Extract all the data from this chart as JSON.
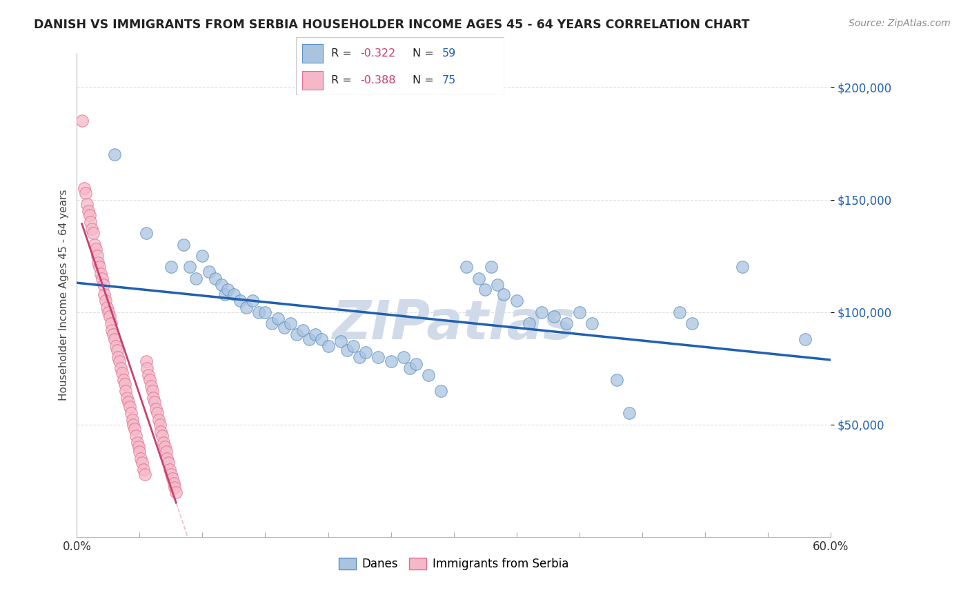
{
  "title": "DANISH VS IMMIGRANTS FROM SERBIA HOUSEHOLDER INCOME AGES 45 - 64 YEARS CORRELATION CHART",
  "source": "Source: ZipAtlas.com",
  "ylabel": "Householder Income Ages 45 - 64 years",
  "ytick_labels": [
    "$50,000",
    "$100,000",
    "$150,000",
    "$200,000"
  ],
  "ytick_values": [
    50000,
    100000,
    150000,
    200000
  ],
  "ylim": [
    0,
    215000
  ],
  "xlim": [
    0.0,
    0.6
  ],
  "legend_label1": "Danes",
  "legend_label2": "Immigrants from Serbia",
  "r1": "-0.322",
  "n1": "59",
  "r2": "-0.388",
  "n2": "75",
  "blue_color": "#aac4df",
  "blue_edge_color": "#5a8fc4",
  "blue_line_color": "#2060b0",
  "pink_color": "#f5b8c8",
  "pink_edge_color": "#e07090",
  "pink_line_color": "#c84070",
  "pink_line_dashed_color": "#e8a0b8",
  "r_color": "#c84070",
  "n_color": "#2060b0",
  "watermark_color": "#d0dae8",
  "background_color": "#ffffff",
  "grid_color": "#e0e0e0",
  "blue_scatter": [
    [
      0.03,
      170000
    ],
    [
      0.055,
      135000
    ],
    [
      0.075,
      120000
    ],
    [
      0.085,
      130000
    ],
    [
      0.09,
      120000
    ],
    [
      0.095,
      115000
    ],
    [
      0.1,
      125000
    ],
    [
      0.105,
      118000
    ],
    [
      0.11,
      115000
    ],
    [
      0.115,
      112000
    ],
    [
      0.118,
      108000
    ],
    [
      0.12,
      110000
    ],
    [
      0.125,
      108000
    ],
    [
      0.13,
      105000
    ],
    [
      0.135,
      102000
    ],
    [
      0.14,
      105000
    ],
    [
      0.145,
      100000
    ],
    [
      0.15,
      100000
    ],
    [
      0.155,
      95000
    ],
    [
      0.16,
      97000
    ],
    [
      0.165,
      93000
    ],
    [
      0.17,
      95000
    ],
    [
      0.175,
      90000
    ],
    [
      0.18,
      92000
    ],
    [
      0.185,
      88000
    ],
    [
      0.19,
      90000
    ],
    [
      0.195,
      88000
    ],
    [
      0.2,
      85000
    ],
    [
      0.21,
      87000
    ],
    [
      0.215,
      83000
    ],
    [
      0.22,
      85000
    ],
    [
      0.225,
      80000
    ],
    [
      0.23,
      82000
    ],
    [
      0.24,
      80000
    ],
    [
      0.25,
      78000
    ],
    [
      0.26,
      80000
    ],
    [
      0.265,
      75000
    ],
    [
      0.27,
      77000
    ],
    [
      0.28,
      72000
    ],
    [
      0.29,
      65000
    ],
    [
      0.31,
      120000
    ],
    [
      0.32,
      115000
    ],
    [
      0.325,
      110000
    ],
    [
      0.33,
      120000
    ],
    [
      0.335,
      112000
    ],
    [
      0.34,
      108000
    ],
    [
      0.35,
      105000
    ],
    [
      0.36,
      95000
    ],
    [
      0.37,
      100000
    ],
    [
      0.38,
      98000
    ],
    [
      0.39,
      95000
    ],
    [
      0.4,
      100000
    ],
    [
      0.41,
      95000
    ],
    [
      0.43,
      70000
    ],
    [
      0.44,
      55000
    ],
    [
      0.48,
      100000
    ],
    [
      0.49,
      95000
    ],
    [
      0.53,
      120000
    ],
    [
      0.58,
      88000
    ]
  ],
  "pink_scatter": [
    [
      0.004,
      185000
    ],
    [
      0.006,
      155000
    ],
    [
      0.007,
      153000
    ],
    [
      0.008,
      148000
    ],
    [
      0.009,
      145000
    ],
    [
      0.01,
      143000
    ],
    [
      0.011,
      140000
    ],
    [
      0.012,
      137000
    ],
    [
      0.013,
      135000
    ],
    [
      0.014,
      130000
    ],
    [
      0.015,
      128000
    ],
    [
      0.016,
      125000
    ],
    [
      0.017,
      122000
    ],
    [
      0.018,
      120000
    ],
    [
      0.019,
      117000
    ],
    [
      0.02,
      115000
    ],
    [
      0.021,
      112000
    ],
    [
      0.022,
      108000
    ],
    [
      0.023,
      105000
    ],
    [
      0.024,
      102000
    ],
    [
      0.025,
      100000
    ],
    [
      0.026,
      98000
    ],
    [
      0.027,
      95000
    ],
    [
      0.028,
      92000
    ],
    [
      0.029,
      90000
    ],
    [
      0.03,
      88000
    ],
    [
      0.031,
      85000
    ],
    [
      0.032,
      83000
    ],
    [
      0.033,
      80000
    ],
    [
      0.034,
      78000
    ],
    [
      0.035,
      75000
    ],
    [
      0.036,
      73000
    ],
    [
      0.037,
      70000
    ],
    [
      0.038,
      68000
    ],
    [
      0.039,
      65000
    ],
    [
      0.04,
      62000
    ],
    [
      0.041,
      60000
    ],
    [
      0.042,
      58000
    ],
    [
      0.043,
      55000
    ],
    [
      0.044,
      52000
    ],
    [
      0.045,
      50000
    ],
    [
      0.046,
      48000
    ],
    [
      0.047,
      45000
    ],
    [
      0.048,
      42000
    ],
    [
      0.049,
      40000
    ],
    [
      0.05,
      38000
    ],
    [
      0.051,
      35000
    ],
    [
      0.052,
      33000
    ],
    [
      0.053,
      30000
    ],
    [
      0.054,
      28000
    ],
    [
      0.055,
      78000
    ],
    [
      0.056,
      75000
    ],
    [
      0.057,
      72000
    ],
    [
      0.058,
      70000
    ],
    [
      0.059,
      67000
    ],
    [
      0.06,
      65000
    ],
    [
      0.061,
      62000
    ],
    [
      0.062,
      60000
    ],
    [
      0.063,
      57000
    ],
    [
      0.064,
      55000
    ],
    [
      0.065,
      52000
    ],
    [
      0.066,
      50000
    ],
    [
      0.067,
      47000
    ],
    [
      0.068,
      45000
    ],
    [
      0.069,
      42000
    ],
    [
      0.07,
      40000
    ],
    [
      0.071,
      38000
    ],
    [
      0.072,
      35000
    ],
    [
      0.073,
      33000
    ],
    [
      0.074,
      30000
    ],
    [
      0.075,
      28000
    ],
    [
      0.076,
      26000
    ],
    [
      0.077,
      24000
    ],
    [
      0.078,
      22000
    ],
    [
      0.079,
      20000
    ]
  ]
}
